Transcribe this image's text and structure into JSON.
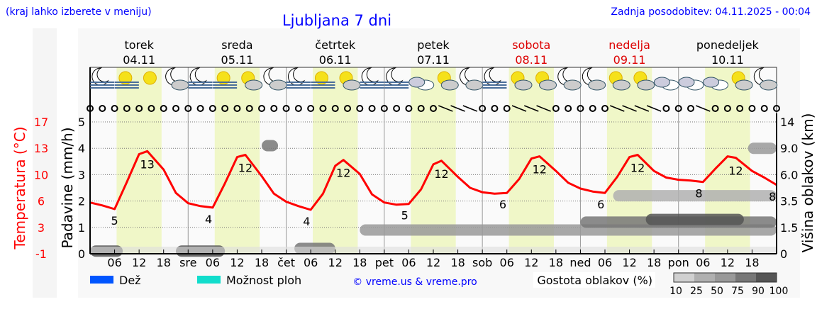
{
  "header": {
    "hint": "(kraj lahko izberete v meniju)",
    "title": "Ljubljana 7 dni",
    "updated": "Zadnja posodobitev: 04.11.2025 - 00:04"
  },
  "days": [
    {
      "name": "torek",
      "date": "04.11",
      "weekend": false
    },
    {
      "name": "sreda",
      "date": "05.11",
      "weekend": false
    },
    {
      "name": "četrtek",
      "date": "06.11",
      "weekend": false
    },
    {
      "name": "petek",
      "date": "07.11",
      "weekend": false
    },
    {
      "name": "sobota",
      "date": "08.11",
      "weekend": true
    },
    {
      "name": "nedelja",
      "date": "09.11",
      "weekend": true
    },
    {
      "name": "ponedeljek",
      "date": "10.11",
      "weekend": false
    }
  ],
  "colors": {
    "temperature": "#ff0000",
    "day_band": "#f0f7c8",
    "rain": "#0055ff",
    "showers": "#11ddcc",
    "link": "#0000ff",
    "weekend": "#dd0000"
  },
  "weather_icons": [
    "moon-fog",
    "sun-fog",
    "sun",
    "moon-cloud",
    "moon-fog",
    "sun-fog",
    "sun-cloud",
    "moon-cloud",
    "moon-fog",
    "sun-fog",
    "sun-cloud",
    "moon-fog",
    "moon-fog",
    "overcast",
    "sun-cloud",
    "moon-cloud",
    "moon-fog",
    "sun-cloud",
    "sun-cloud",
    "moon-cloud",
    "moon-cloud",
    "sun-cloud",
    "sun-cloud",
    "overcast",
    "overcast",
    "overcast",
    "sun-cloud",
    "moon-cloud"
  ],
  "wind_barbs_hours": [
    87,
    90,
    93,
    105,
    108,
    111,
    129,
    132,
    135,
    138,
    150
  ],
  "chart_data": {
    "type": "line",
    "x_unit": "hours from 04.11 00:00",
    "x_tick_labels": [
      "06",
      "12",
      "18",
      "sre",
      "06",
      "12",
      "18",
      "čet",
      "06",
      "12",
      "18",
      "pet",
      "06",
      "12",
      "18",
      "sob",
      "06",
      "12",
      "18",
      "ned",
      "06",
      "12",
      "18",
      "pon",
      "06",
      "12",
      "18"
    ],
    "left_axis": {
      "label": "Padavine (mm/h)",
      "ticks": [
        0,
        1,
        2,
        3,
        4,
        5
      ],
      "ylim": [
        0,
        5
      ]
    },
    "temp_axis": {
      "label": "Temperatura (°C)",
      "ticks": [
        "-1",
        "3",
        "6",
        "10",
        "13",
        "17"
      ],
      "ylim": [
        -1,
        17
      ]
    },
    "right_axis": {
      "label": "Višina oblakov (km)",
      "ticks": [
        "0",
        "1.5",
        "3.5",
        "6.0",
        "9.0",
        "14"
      ]
    },
    "grid": true,
    "temperature": {
      "x": [
        0,
        3,
        6,
        9,
        12,
        14,
        18,
        21,
        24,
        27,
        30,
        33,
        36,
        38,
        42,
        45,
        48,
        51,
        54,
        57,
        60,
        62,
        66,
        69,
        72,
        75,
        78,
        81,
        84,
        86,
        90,
        93,
        96,
        99,
        102,
        105,
        108,
        110,
        114,
        117,
        120,
        123,
        126,
        129,
        132,
        134,
        138,
        141,
        144,
        147,
        150,
        153,
        156,
        158,
        162,
        165,
        168
      ],
      "y": [
        6.0,
        5.6,
        5.1,
        8.8,
        12.6,
        13.0,
        10.5,
        7.3,
        5.9,
        5.5,
        5.3,
        8.6,
        12.2,
        12.5,
        9.6,
        7.2,
        6.1,
        5.5,
        5.0,
        7.2,
        11.0,
        11.8,
        9.9,
        7.1,
        6.0,
        5.7,
        5.8,
        7.8,
        11.2,
        11.7,
        9.5,
        8.0,
        7.4,
        7.2,
        7.3,
        9.2,
        12.0,
        12.3,
        10.3,
        8.7,
        7.9,
        7.5,
        7.3,
        9.5,
        12.2,
        12.5,
        10.3,
        9.4,
        9.1,
        9.0,
        8.8,
        10.6,
        12.3,
        12.1,
        10.3,
        9.4,
        8.4
      ]
    },
    "temp_labels": [
      {
        "x": 6,
        "t": "5"
      },
      {
        "x": 14,
        "t": "13"
      },
      {
        "x": 29,
        "t": "4"
      },
      {
        "x": 38,
        "t": "12"
      },
      {
        "x": 53,
        "t": "4"
      },
      {
        "x": 62,
        "t": "12"
      },
      {
        "x": 77,
        "t": "5"
      },
      {
        "x": 86,
        "t": "12"
      },
      {
        "x": 101,
        "t": "6"
      },
      {
        "x": 110,
        "t": "12"
      },
      {
        "x": 125,
        "t": "6"
      },
      {
        "x": 134,
        "t": "12"
      },
      {
        "x": 149,
        "t": "8"
      },
      {
        "x": 158,
        "t": "12"
      },
      {
        "x": 167,
        "t": "8"
      }
    ],
    "clouds": [
      {
        "x0": 0,
        "x1": 8,
        "level": 0.1,
        "density": 90
      },
      {
        "x0": 21,
        "x1": 33,
        "level": 0.1,
        "density": 90
      },
      {
        "x0": 50,
        "x1": 60,
        "level": 0.2,
        "density": 75
      },
      {
        "x0": 66,
        "x1": 168,
        "level": 0.9,
        "density": 50
      },
      {
        "x0": 120,
        "x1": 168,
        "level": 1.2,
        "density": 75
      },
      {
        "x0": 136,
        "x1": 160,
        "level": 1.3,
        "density": 90
      },
      {
        "x0": 128,
        "x1": 168,
        "level": 2.2,
        "density": 25
      },
      {
        "x0": 42,
        "x1": 46,
        "level": 4.1,
        "density": 75
      },
      {
        "x0": 161,
        "x1": 168,
        "level": 4.0,
        "density": 50
      }
    ],
    "legend": {
      "rain": "Dež",
      "showers": "Možnost ploh",
      "credit": "© vreme.us & vreme.pro",
      "cloud_density": "Gostota oblakov (%)",
      "density_scale": [
        "10",
        "25",
        "50",
        "75",
        "90",
        "100"
      ]
    }
  }
}
